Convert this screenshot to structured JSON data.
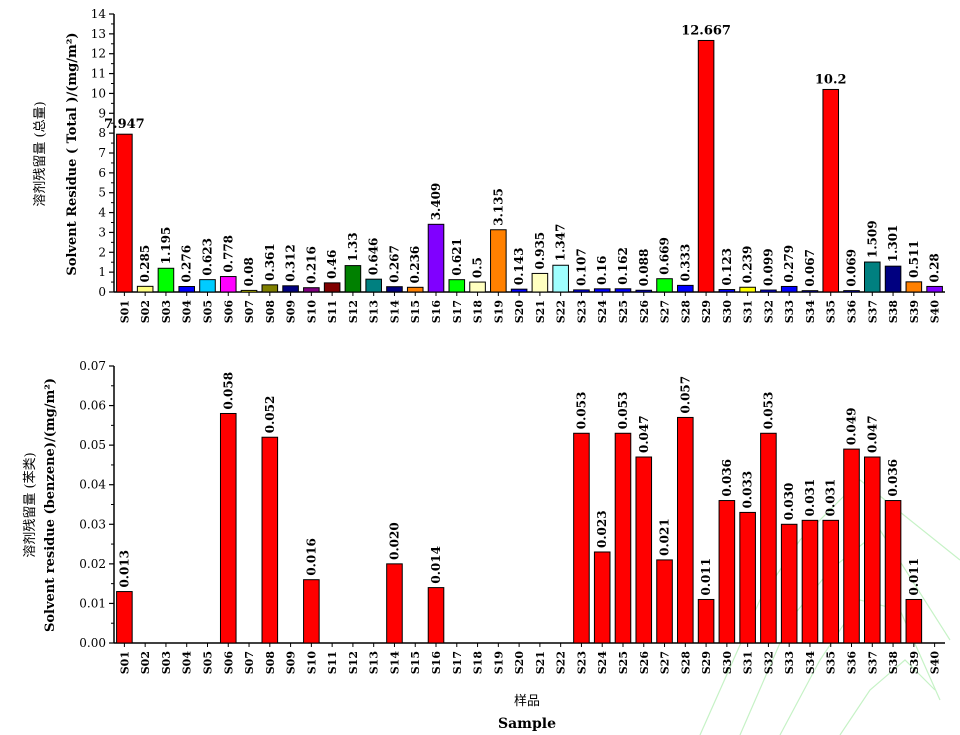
{
  "chart_data": [
    {
      "type": "bar",
      "ylabel_cn": "溶剂残留量 (总量)",
      "ylabel": "Solvent Residue ( Total )/(mg/m²)",
      "ylim": [
        0,
        14
      ],
      "yticks": [
        "0",
        "1",
        "2",
        "3",
        "4",
        "5",
        "6",
        "7",
        "8",
        "9",
        "10",
        "11",
        "12",
        "13",
        "14"
      ],
      "categories": [
        "S01",
        "S02",
        "S03",
        "S04",
        "S05",
        "S06",
        "S07",
        "S08",
        "S09",
        "S10",
        "S11",
        "S12",
        "S13",
        "S14",
        "S15",
        "S16",
        "S17",
        "S18",
        "S19",
        "S20",
        "S21",
        "S22",
        "S23",
        "S24",
        "S25",
        "S26",
        "S27",
        "S28",
        "S29",
        "S30",
        "S31",
        "S32",
        "S33",
        "S34",
        "S35",
        "S36",
        "S37",
        "S38",
        "S39",
        "S40"
      ],
      "values": [
        7.947,
        0.285,
        1.195,
        0.276,
        0.623,
        0.778,
        0.08,
        0.361,
        0.312,
        0.216,
        0.46,
        1.33,
        0.646,
        0.267,
        0.236,
        3.409,
        0.621,
        0.5,
        3.135,
        0.143,
        0.935,
        1.347,
        0.107,
        0.16,
        0.162,
        0.088,
        0.669,
        0.333,
        12.667,
        0.123,
        0.239,
        0.099,
        0.279,
        0.067,
        10.2,
        0.069,
        1.509,
        1.301,
        0.511,
        0.28
      ],
      "labels": [
        "7.947",
        "0.285",
        "1.195",
        "0.276",
        "0.623",
        "0.778",
        "0.08",
        "0.361",
        "0.312",
        "0.216",
        "0.46",
        "1.33",
        "0.646",
        "0.267",
        "0.236",
        "3.409",
        "0.621",
        "0.5",
        "3.135",
        "0.143",
        "0.935",
        "1.347",
        "0.107",
        "0.16",
        "0.162",
        "0.088",
        "0.669",
        "0.333",
        "12.667",
        "0.123",
        "0.239",
        "0.099",
        "0.279",
        "0.067",
        "10.2",
        "0.069",
        "1.509",
        "1.301",
        "0.511",
        "0.28"
      ],
      "colors": [
        "#ff0000",
        "#ffff80",
        "#00ff00",
        "#0000ff",
        "#00ccff",
        "#ff00ff",
        "#ffff00",
        "#808000",
        "#000080",
        "#800080",
        "#800000",
        "#008000",
        "#008080",
        "#000080",
        "#ff8000",
        "#8000ff",
        "#00ff00",
        "#ffffc0",
        "#ff8000",
        "#0000ff",
        "#ffffc0",
        "#a0ffff",
        "#0000ff",
        "#0000ff",
        "#0000ff",
        "#0000ff",
        "#00ff00",
        "#0000ff",
        "#ff0000",
        "#0000ff",
        "#ffff00",
        "#0000ff",
        "#0000ff",
        "#0000ff",
        "#ff0000",
        "#0000ff",
        "#008080",
        "#000080",
        "#ff8000",
        "#8000ff"
      ]
    },
    {
      "type": "bar",
      "ylabel_cn": "溶剂残留量 (苯类)",
      "ylabel": "Solvent residue (benzene)/(mg/m²)",
      "xlabel_cn": "样品",
      "xlabel": "Sample",
      "ylim": [
        0,
        0.07
      ],
      "yticks": [
        "0.00",
        "0.01",
        "0.02",
        "0.03",
        "0.04",
        "0.05",
        "0.06",
        "0.07"
      ],
      "categories": [
        "S01",
        "S02",
        "S03",
        "S04",
        "S05",
        "S06",
        "S07",
        "S08",
        "S09",
        "S10",
        "S11",
        "S12",
        "S13",
        "S14",
        "S15",
        "S16",
        "S17",
        "S18",
        "S19",
        "S20",
        "S21",
        "S22",
        "S23",
        "S24",
        "S25",
        "S26",
        "S27",
        "S28",
        "S29",
        "S30",
        "S31",
        "S32",
        "S33",
        "S34",
        "S35",
        "S36",
        "S37",
        "S38",
        "S39",
        "S40"
      ],
      "values": [
        0.013,
        0,
        0,
        0,
        0,
        0.058,
        0,
        0.052,
        0,
        0.016,
        0,
        0,
        0,
        0.02,
        0,
        0.014,
        0,
        0,
        0,
        0,
        0,
        0,
        0.053,
        0.023,
        0.053,
        0.047,
        0.021,
        0.057,
        0.011,
        0.036,
        0.033,
        0.053,
        0.03,
        0.031,
        0.031,
        0.049,
        0.047,
        0.036,
        0.011,
        0
      ],
      "labels": [
        "0.013",
        "",
        "",
        "",
        "",
        "0.058",
        "",
        "0.052",
        "",
        "0.016",
        "",
        "",
        "",
        "0.020",
        "",
        "0.014",
        "",
        "",
        "",
        "",
        "",
        "",
        "0.053",
        "0.023",
        "0.053",
        "0.047",
        "0.021",
        "0.057",
        "0.011",
        "0.036",
        "0.033",
        "0.053",
        "0.030",
        "0.031",
        "0.031",
        "0.049",
        "0.047",
        "0.036",
        "0.011",
        ""
      ],
      "bar_color": "#ff0000"
    }
  ]
}
